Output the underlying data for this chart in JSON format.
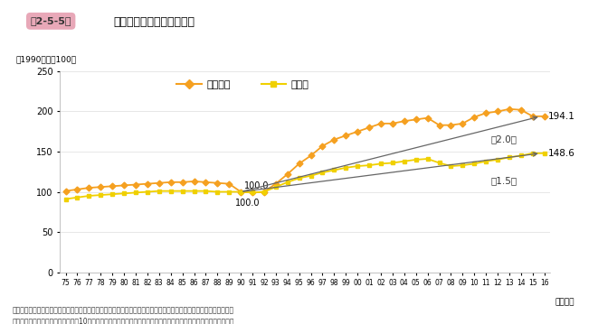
{
  "title_box": "第2-5-5図",
  "title_main": "企業規模別設備年齢の推移",
  "ylabel": "（1990年度＝100）",
  "xlabel_suffix": "（年度）",
  "footnote1": "資料：財務省「法人企業統計調査季報」より（一財）商工総合研究所「中小企業の競争力と設備投資」をもとに作成。",
  "footnote2": "（注）ここでいう大企業とは資本金10億円以上の企業、中小企業とは資本金１千万円以上１億円未満の企業とする。",
  "ylim": [
    0,
    250
  ],
  "yticks": [
    0,
    50,
    100,
    150,
    200,
    250
  ],
  "years_labels": [
    "75",
    "76",
    "77",
    "78",
    "79",
    "80",
    "81",
    "82",
    "83",
    "84",
    "85",
    "86",
    "87",
    "88",
    "89",
    "90",
    "91",
    "92",
    "93",
    "94",
    "95",
    "96",
    "97",
    "98",
    "99",
    "00",
    "01",
    "02",
    "03",
    "04",
    "05",
    "06",
    "07",
    "08",
    "09",
    "10",
    "11",
    "12",
    "13",
    "14",
    "15",
    "16"
  ],
  "sme_data": [
    101,
    103,
    105,
    106,
    107,
    108,
    109,
    110,
    111,
    112,
    112,
    113,
    112,
    111,
    110,
    100,
    99,
    100,
    110,
    122,
    135,
    145,
    157,
    165,
    170,
    175,
    180,
    185,
    185,
    188,
    190,
    192,
    183,
    183,
    185,
    193,
    198,
    200,
    203,
    202,
    194,
    194
  ],
  "large_data": [
    91,
    93,
    95,
    96,
    97,
    98,
    99,
    100,
    101,
    101,
    101,
    101,
    101,
    100,
    100,
    100,
    99,
    100,
    106,
    112,
    117,
    120,
    124,
    127,
    130,
    132,
    133,
    135,
    136,
    138,
    140,
    141,
    136,
    132,
    133,
    135,
    138,
    140,
    143,
    145,
    148,
    148
  ],
  "sme_color": "#F5A020",
  "large_color": "#F0D000",
  "sme_label": "中小企業",
  "large_label": "大企業",
  "annotation_sme_end": "194.1",
  "annotation_large_end": "148.6",
  "annotation_100_sme": "100.0",
  "annotation_100_large": "100.0",
  "arrow_text_sme": "約2.0倍",
  "arrow_text_large": "約1.5倍",
  "background_color": "#FFFFFF",
  "header_bg": "#E8A8B8",
  "arrow_color": "#666666",
  "idx_1990": 15,
  "idx_last": 41
}
